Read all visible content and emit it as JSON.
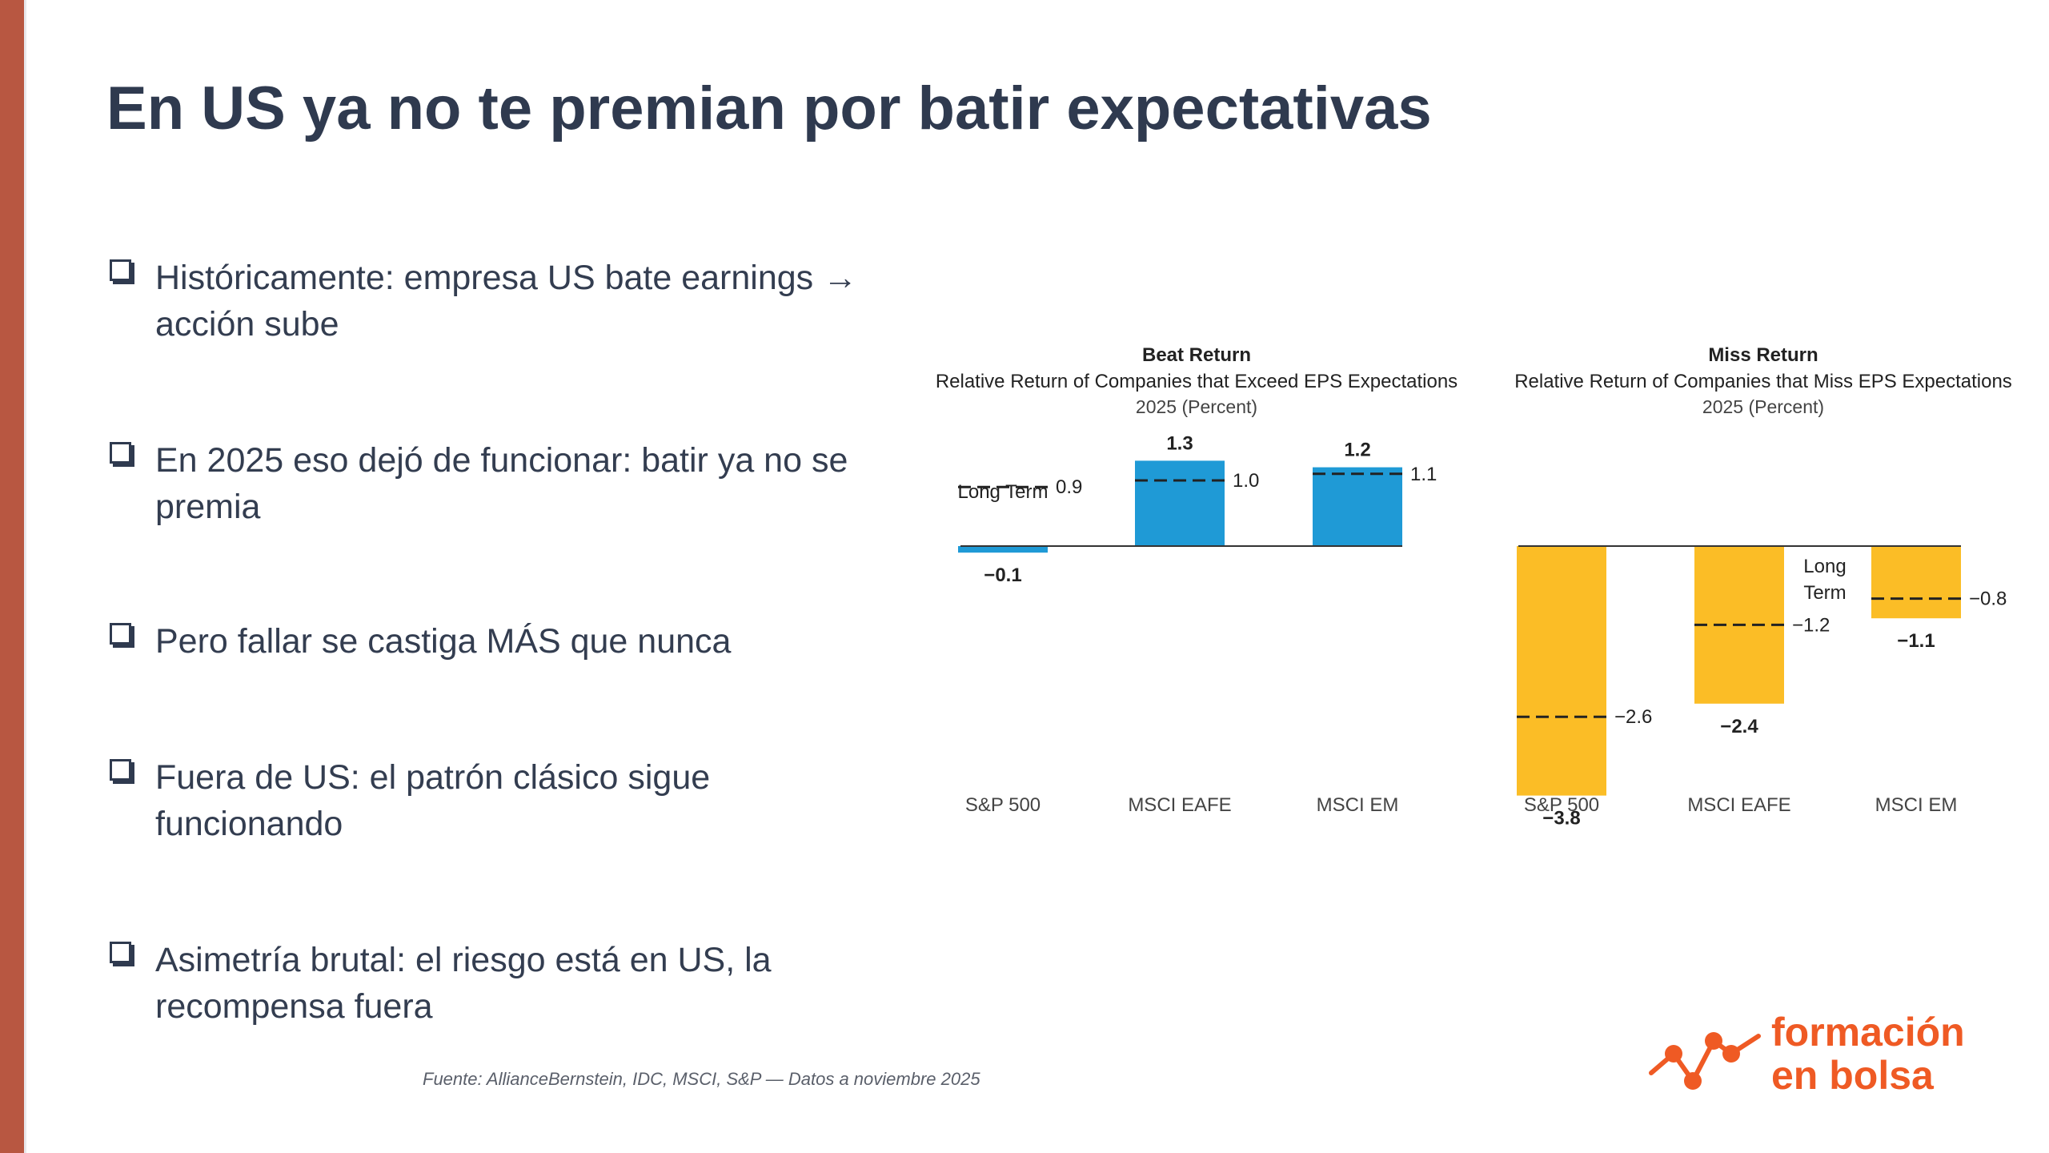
{
  "slide": {
    "title": "En US ya no te premian por batir expectativas",
    "bullets": [
      {
        "line1": "Históricamente: empresa US bate earnings →",
        "line2": "acción sube"
      },
      {
        "line1": "En 2025 eso dejó de funcionar: batir ya no se",
        "line2": "premia"
      },
      {
        "line1": "Pero fallar se castiga MÁS que nunca",
        "line2": ""
      },
      {
        "line1": "Fuera de US: el patrón clásico sigue",
        "line2": "funcionando"
      },
      {
        "line1": "Asimetría brutal: el riesgo está en US, la",
        "line2": "recompensa fuera"
      }
    ],
    "source": "Fuente: AllianceBernstein, IDC, MSCI, S&P — Datos a noviembre 2025"
  },
  "logo": {
    "line1": "formación",
    "line2": "en bolsa",
    "color": "#ef5a24"
  },
  "colors": {
    "accent_bar": "#b85741",
    "beat_bar": "#1f9ad6",
    "miss_bar": "#fbbd26",
    "title": "#2f3a4f"
  },
  "chart_data": [
    {
      "type": "bar",
      "title": "Beat Return",
      "subtitle": "Relative Return of Companies that Exceed EPS Expectations",
      "unit_label": "2025 (Percent)",
      "categories": [
        "S&P 500",
        "MSCI EAFE",
        "MSCI EM"
      ],
      "values": [
        -0.1,
        1.3,
        1.2
      ],
      "value_labels": [
        "−0.1",
        "1.3",
        "1.2"
      ],
      "long_term": [
        0.9,
        1.0,
        1.1
      ],
      "long_term_labels": [
        "0.9",
        "1.0",
        "1.1"
      ],
      "long_term_text": "Long Term",
      "bar_color": "#1f9ad6"
    },
    {
      "type": "bar",
      "title": "Miss Return",
      "subtitle": "Relative Return of Companies that Miss EPS Expectations",
      "unit_label": "2025 (Percent)",
      "categories": [
        "S&P 500",
        "MSCI EAFE",
        "MSCI EM"
      ],
      "values": [
        -3.8,
        -2.4,
        -1.1
      ],
      "value_labels": [
        "−3.8",
        "−2.4",
        "−1.1"
      ],
      "long_term": [
        -2.6,
        -1.2,
        -0.8
      ],
      "long_term_labels": [
        "−2.6",
        "−1.2",
        "−0.8"
      ],
      "long_term_text_line1": "Long",
      "long_term_text_line2": "Term",
      "bar_color": "#fbbd26"
    }
  ]
}
